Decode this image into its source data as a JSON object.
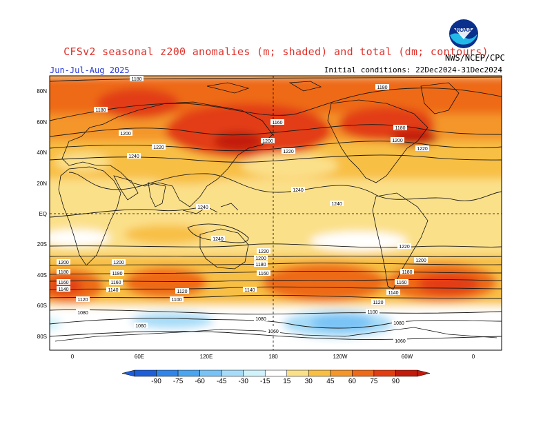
{
  "header": {
    "title": "CFSv2 seasonal z200 anomalies (m; shaded) and total (dm; contours)",
    "season": "Jun-Jul-Aug 2025",
    "initial_conditions": "Initial conditions: 22Dec2024-31Dec2024",
    "organization": "NWS/NCEP/CPC",
    "logo_text": "NOAA"
  },
  "axes": {
    "lat_labels": [
      "80N",
      "60N",
      "40N",
      "20N",
      "EQ",
      "20S",
      "40S",
      "60S",
      "80S"
    ],
    "lon_labels": [
      "0",
      "60E",
      "120E",
      "180",
      "120W",
      "60W",
      "0"
    ]
  },
  "colorbar": {
    "labels": [
      "-90",
      "-75",
      "-60",
      "-45",
      "-30",
      "-15",
      "15",
      "30",
      "45",
      "60",
      "75",
      "90"
    ],
    "colors": [
      "#1e5fd8",
      "#2f86e8",
      "#4aa6f0",
      "#78c2f6",
      "#a6dcf8",
      "#d0f2fb",
      "#ffffff",
      "#fbe08a",
      "#f8bf45",
      "#f4962a",
      "#ee6a18",
      "#e23e12",
      "#c21a0c"
    ]
  },
  "contours": {
    "labels": [
      "1180",
      "1180",
      "1180",
      "1200",
      "1220",
      "1240",
      "1160",
      "1200",
      "1220",
      "1180",
      "1200",
      "1220",
      "1240",
      "1240",
      "1240",
      "1240",
      "1220",
      "1200",
      "1180",
      "1160",
      "1140",
      "1200",
      "1180",
      "1160",
      "1140",
      "1120",
      "1100",
      "1220",
      "1200",
      "1180",
      "1160",
      "1140",
      "1120",
      "1200",
      "1180",
      "1160",
      "1140",
      "1120",
      "1100",
      "1080",
      "1060",
      "1080",
      "1060",
      "1080",
      "1060"
    ]
  }
}
